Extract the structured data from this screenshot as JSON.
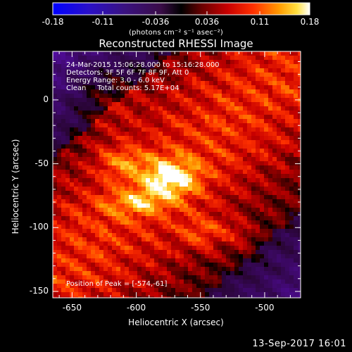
{
  "colorbar": {
    "tick_labels": [
      "-0.18",
      "-0.11",
      "-0.036",
      "0.036",
      "0.11",
      "0.18"
    ],
    "range": [
      -0.18,
      0.18
    ],
    "units_label": "(photons cm⁻² s⁻¹ asec⁻²)"
  },
  "chart_data": {
    "type": "heatmap",
    "title": "Reconstructed RHESSI Image",
    "xlabel": "Heliocentric X (arcsec)",
    "ylabel": "Heliocentric Y (arcsec)",
    "xlim": [
      -665,
      -472
    ],
    "ylim": [
      -155,
      38
    ],
    "x_ticks": [
      -650,
      -600,
      -550,
      -500
    ],
    "y_ticks": [
      0,
      -50,
      -100,
      -150
    ],
    "x_tick_labels": [
      "-650",
      "-600",
      "-550",
      "-500"
    ],
    "y_tick_labels": [
      "0",
      "-50",
      "-100",
      "-150"
    ],
    "peak": [
      -574,
      -61
    ],
    "annotations": [
      "24-Mar-2015 15:06:28.000 to 15:16:28.000",
      "Detectors: 3F 5F 6F 7F 8F 9F, Att 0",
      "Energy Range: 3.0 - 6.0 keV",
      "Clean     Total counts: 5.17E+04"
    ],
    "peak_label": "Position of Peak = [-574,-61]"
  },
  "timestamp": "13-Sep-2017 16:01"
}
